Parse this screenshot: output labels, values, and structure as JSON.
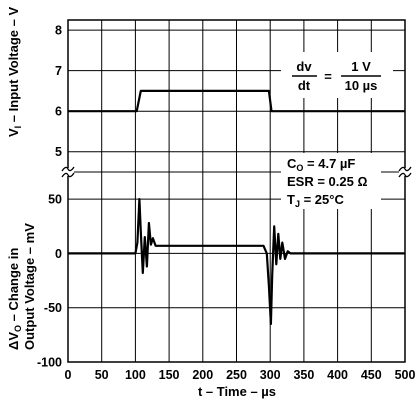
{
  "chart_data": {
    "type": "line",
    "x_axis": {
      "label": "t – Time – µs",
      "range": [
        0,
        500
      ],
      "ticks": [
        0,
        50,
        100,
        150,
        200,
        250,
        300,
        350,
        400,
        450,
        500
      ]
    },
    "panels": [
      {
        "name": "input",
        "ylabel": {
          "main": "V",
          "sub": "I",
          "rest": " – Input Voltage – V"
        },
        "ylim": [
          4.5,
          8.25
        ],
        "ticks": [
          5,
          6,
          7,
          8
        ],
        "series": {
          "x": [
            0,
            102,
            108,
            298,
            302,
            500
          ],
          "y": [
            6.0,
            6.0,
            6.5,
            6.5,
            6.0,
            6.0
          ]
        }
      },
      {
        "name": "output",
        "ylabel": {
          "main": "ΔV",
          "sub": "O",
          "rest": " – Change in",
          "line2": "Output Voltage – mV"
        },
        "ylim": [
          -100,
          75
        ],
        "ticks": [
          -100,
          -50,
          0,
          50
        ],
        "series": {
          "x": [
            0,
            100,
            103,
            106,
            108,
            111,
            114,
            117,
            120,
            123,
            126,
            130,
            290,
            295,
            298,
            301,
            303,
            306,
            309,
            312,
            315,
            318,
            322,
            326,
            330,
            500
          ],
          "y": [
            0,
            0,
            10,
            50,
            20,
            -18,
            15,
            -12,
            28,
            8,
            14,
            7,
            7,
            0,
            -30,
            -65,
            -20,
            25,
            -10,
            18,
            -5,
            10,
            -5,
            2,
            0,
            0
          ]
        }
      }
    ],
    "annotations": {
      "rate": {
        "lhs_num": "dv",
        "lhs_den": "dt",
        "eq": "=",
        "rhs_num": "1 V",
        "rhs_den": "10 µs"
      },
      "conditions": [
        {
          "main": "C",
          "sub": "O",
          "rest": " = 4.7 µF"
        },
        {
          "main": "ESR = 0.25 Ω",
          "sub": "",
          "rest": ""
        },
        {
          "main": "T",
          "sub": "J",
          "rest": " = 25°C"
        }
      ]
    },
    "grid": true,
    "break_marks": true
  }
}
